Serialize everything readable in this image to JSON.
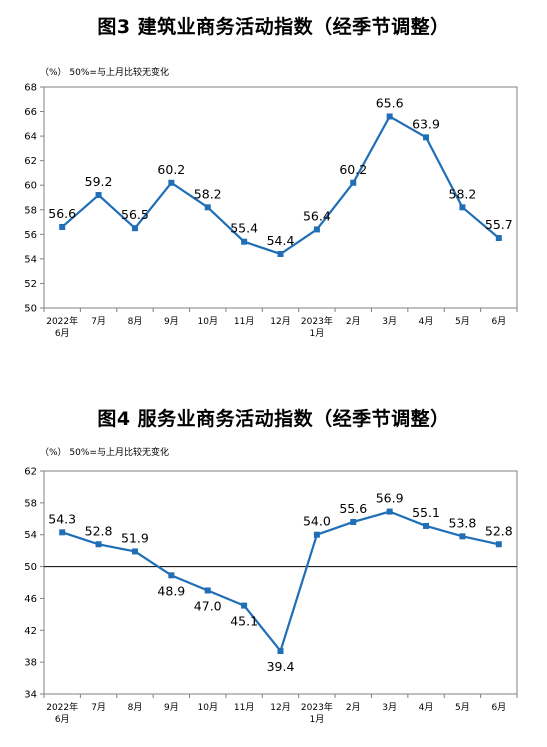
{
  "charts": [
    {
      "title": "图3  建筑业商务活动指数（经季节调整）",
      "unit_note": "（%）  50%=与上月比较无变化",
      "chart_data": {
        "type": "line",
        "categories": [
          [
            "2022年",
            "6月"
          ],
          [
            "7月"
          ],
          [
            "8月"
          ],
          [
            "9月"
          ],
          [
            "10月"
          ],
          [
            "11月"
          ],
          [
            "12月"
          ],
          [
            "2023年",
            "1月"
          ],
          [
            "2月"
          ],
          [
            "3月"
          ],
          [
            "4月"
          ],
          [
            "5月"
          ],
          [
            "6月"
          ]
        ],
        "values": [
          56.6,
          59.2,
          56.5,
          60.2,
          58.2,
          55.4,
          54.4,
          56.4,
          60.2,
          65.6,
          63.9,
          58.2,
          55.7
        ],
        "labels": [
          "56.6",
          "59.2",
          "56.5",
          "60.2",
          "58.2",
          "55.4",
          "54.4",
          "56.4",
          "60.2",
          "65.6",
          "63.9",
          "58.2",
          "55.7"
        ],
        "ylim": [
          50,
          68
        ],
        "yticks": [
          "50",
          "52",
          "54",
          "56",
          "58",
          "60",
          "62",
          "64",
          "66",
          "68"
        ],
        "baseline": null,
        "color": "#1f6eb6"
      }
    },
    {
      "title": "图4  服务业商务活动指数（经季节调整）",
      "unit_note": "（%）  50%=与上月比较无变化",
      "chart_data": {
        "type": "line",
        "categories": [
          [
            "2022年",
            "6月"
          ],
          [
            "7月"
          ],
          [
            "8月"
          ],
          [
            "9月"
          ],
          [
            "10月"
          ],
          [
            "11月"
          ],
          [
            "12月"
          ],
          [
            "2023年",
            "1月"
          ],
          [
            "2月"
          ],
          [
            "3月"
          ],
          [
            "4月"
          ],
          [
            "5月"
          ],
          [
            "6月"
          ]
        ],
        "values": [
          54.3,
          52.8,
          51.9,
          48.9,
          47.0,
          45.1,
          39.4,
          54.0,
          55.6,
          56.9,
          55.1,
          53.8,
          52.8
        ],
        "labels": [
          "54.3",
          "52.8",
          "51.9",
          "48.9",
          "47.0",
          "45.1",
          "39.4",
          "54.0",
          "55.6",
          "56.9",
          "55.1",
          "53.8",
          "52.8"
        ],
        "ylim": [
          34,
          62
        ],
        "yticks": [
          "34",
          "38",
          "42",
          "46",
          "50",
          "54",
          "58",
          "62"
        ],
        "baseline": 50,
        "color": "#1f6eb6"
      }
    }
  ]
}
